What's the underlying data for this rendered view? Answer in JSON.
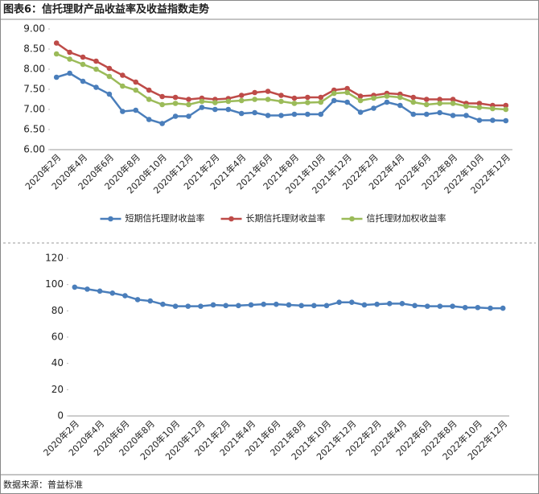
{
  "title": "图表6：信托理财产品收益率及收益指数走势",
  "source": "数据来源：普益标准",
  "chart_data": [
    {
      "type": "line",
      "categories": [
        "2020年2月",
        null,
        "2020年4月",
        null,
        "2020年6月",
        null,
        "2020年8月",
        null,
        "2020年10月",
        null,
        "2020年12月",
        null,
        "2021年2月",
        null,
        "2021年4月",
        null,
        "2021年6月",
        null,
        "2021年8月",
        null,
        "2021年10月",
        null,
        "2021年12月",
        null,
        "2022年2月",
        null,
        "2022年4月",
        null,
        "2022年6月",
        null,
        "2022年8月",
        null,
        "2022年10月",
        null,
        "2022年12月"
      ],
      "series": [
        {
          "name": "短期信托理财收益率",
          "color": "#4a7ebb",
          "values": [
            7.8,
            7.9,
            7.7,
            7.55,
            7.38,
            6.95,
            6.98,
            6.75,
            6.65,
            6.83,
            6.83,
            7.05,
            7.0,
            7.0,
            6.9,
            6.92,
            6.85,
            6.85,
            6.88,
            6.88,
            6.88,
            7.22,
            7.18,
            6.93,
            7.03,
            7.18,
            7.1,
            6.88,
            6.88,
            6.92,
            6.85,
            6.85,
            6.73,
            6.73,
            6.72
          ]
        },
        {
          "name": "长期信托理财收益率",
          "color": "#be4b48",
          "values": [
            8.65,
            8.42,
            8.3,
            8.2,
            8.02,
            7.85,
            7.68,
            7.48,
            7.32,
            7.3,
            7.25,
            7.28,
            7.25,
            7.27,
            7.35,
            7.42,
            7.45,
            7.35,
            7.28,
            7.3,
            7.3,
            7.48,
            7.52,
            7.33,
            7.35,
            7.4,
            7.38,
            7.3,
            7.25,
            7.25,
            7.25,
            7.15,
            7.15,
            7.1,
            7.1
          ]
        },
        {
          "name": "信托理财加权收益率",
          "color": "#9bbb59",
          "values": [
            8.38,
            8.25,
            8.12,
            8.0,
            7.82,
            7.58,
            7.48,
            7.25,
            7.12,
            7.15,
            7.12,
            7.2,
            7.17,
            7.2,
            7.22,
            7.25,
            7.25,
            7.2,
            7.15,
            7.17,
            7.18,
            7.4,
            7.42,
            7.22,
            7.28,
            7.33,
            7.3,
            7.18,
            7.12,
            7.15,
            7.15,
            7.08,
            7.05,
            7.02,
            7.0
          ]
        }
      ],
      "ylim": [
        6,
        9
      ],
      "yticks": [
        {
          "value": 6,
          "label": "6.00"
        },
        {
          "value": 6.5,
          "label": "6.50"
        },
        {
          "value": 7,
          "label": "7.00"
        },
        {
          "value": 7.5,
          "label": "7.50"
        },
        {
          "value": 8,
          "label": "8.00"
        },
        {
          "value": 8.5,
          "label": "8.50"
        },
        {
          "value": 9,
          "label": "9.00"
        }
      ],
      "legend": "bottom"
    },
    {
      "type": "line",
      "categories": [
        "2020年2月",
        null,
        "2020年4月",
        null,
        "2020年6月",
        null,
        "2020年8月",
        null,
        "2020年10月",
        null,
        "2020年12月",
        null,
        "2021年2月",
        null,
        "2021年4月",
        null,
        "2021年6月",
        null,
        "2021年8月",
        null,
        "2021年10月",
        null,
        "2021年12月",
        null,
        "2022年2月",
        null,
        "2022年4月",
        null,
        "2022年6月",
        null,
        "2022年8月",
        null,
        "2022年10月",
        null,
        "2022年12月"
      ],
      "series": [
        {
          "color": "#4a7ebb",
          "values": [
            98,
            96.5,
            95,
            93.5,
            91.5,
            88.5,
            87.5,
            85,
            83.5,
            83.5,
            83.5,
            84.5,
            84,
            84,
            84.5,
            85,
            85,
            84.5,
            84,
            84,
            84,
            86.5,
            86.5,
            84.5,
            85,
            85.5,
            85.5,
            84,
            83.5,
            83.5,
            83.5,
            82.5,
            82.5,
            82,
            82
          ]
        }
      ],
      "ylim": [
        0,
        120
      ],
      "yticks": [
        0,
        20,
        40,
        60,
        80,
        100,
        120
      ]
    }
  ]
}
